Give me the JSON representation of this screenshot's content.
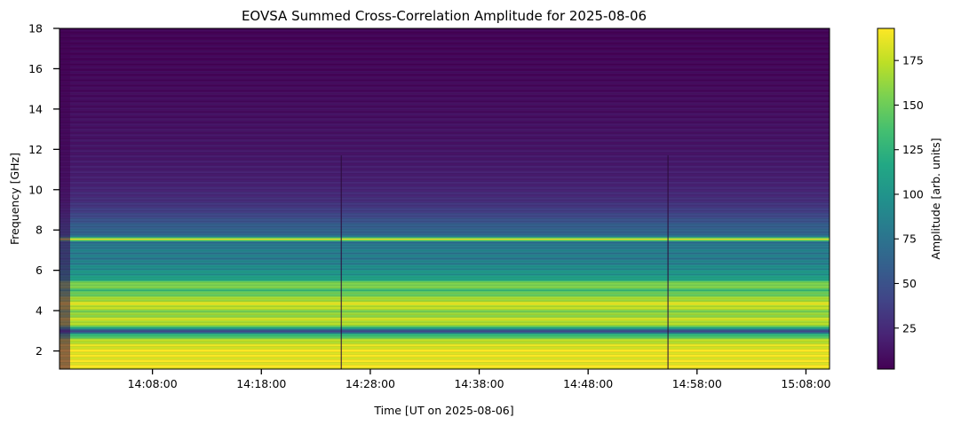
{
  "chart_data": {
    "type": "heatmap",
    "title": "EOVSA Summed Cross-Correlation Amplitude for 2025-08-06",
    "xlabel": "Time [UT on 2025-08-06]",
    "ylabel": "Frequency [GHz]",
    "x_ticks": [
      "14:08:00",
      "14:18:00",
      "14:28:00",
      "14:38:00",
      "14:48:00",
      "14:58:00",
      "15:08:00"
    ],
    "y_ticks": [
      2,
      4,
      6,
      8,
      10,
      12,
      14,
      16,
      18
    ],
    "xlim": [
      "13:59:28",
      "15:10:10"
    ],
    "ylim": [
      1.1,
      18
    ],
    "colormap": "viridis",
    "colorbar": {
      "label": "Amplitude [arb. units]",
      "range": [
        2,
        193
      ],
      "ticks": [
        25,
        50,
        75,
        100,
        125,
        150,
        175
      ]
    },
    "features": {
      "narrow_band_ghz": 7.6,
      "gap_band_ghz": 3.0,
      "data_gaps_ut": [
        "14:25:20",
        "14:55:20"
      ],
      "gap_top_ghz": 11.7
    }
  }
}
